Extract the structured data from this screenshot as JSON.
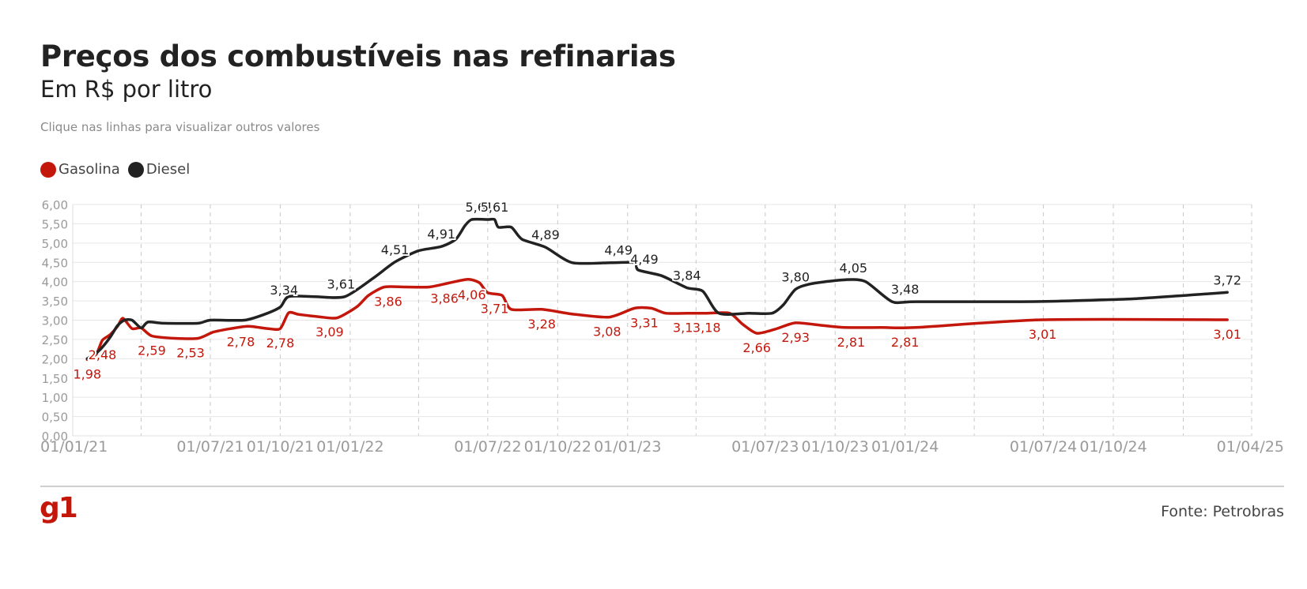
{
  "title": "Preços dos combustíveis nas refinarias",
  "subtitle": "Em R$ por litro",
  "hint": "Clique nas linhas para visualizar outros valores",
  "legend": [
    {
      "label": "Gasolina",
      "color": "#c4170c"
    },
    {
      "label": "Diesel",
      "color": "#222222"
    }
  ],
  "source": "Fonte: Petrobras",
  "logo": "g1",
  "chart_data": {
    "type": "line",
    "title": "Preços dos combustíveis nas refinarias",
    "subtitle": "Em R$ por litro",
    "ylim": [
      0,
      6
    ],
    "y_ticks": [
      "6,00",
      "5,50",
      "5,00",
      "4,50",
      "4,00",
      "3,50",
      "3,00",
      "2,50",
      "2,00",
      "1,50",
      "1,00",
      "0,50",
      "0,00"
    ],
    "x_ticks": [
      "01/01/21",
      "01/07/21",
      "01/10/21",
      "01/01/22",
      "01/07/22",
      "01/10/22",
      "01/01/23",
      "01/07/23",
      "01/10/23",
      "01/01/24",
      "01/07/24",
      "01/10/24",
      "01/04/25"
    ],
    "x_tick_dates": [
      "2021-01-01",
      "2021-07-01",
      "2021-10-01",
      "2022-01-01",
      "2022-07-01",
      "2022-10-01",
      "2023-01-01",
      "2023-07-01",
      "2023-10-01",
      "2024-01-01",
      "2024-07-01",
      "2024-10-01",
      "2025-04-01"
    ],
    "grid": true,
    "legend_position": "top-left",
    "series": [
      {
        "name": "Gasolina",
        "color": "#c4170c",
        "points": [
          [
            "2021-01-20",
            1.98
          ],
          [
            "2021-02-01",
            2.12
          ],
          [
            "2021-02-09",
            2.48
          ],
          [
            "2021-02-19",
            2.62
          ],
          [
            "2021-03-01",
            2.84
          ],
          [
            "2021-03-08",
            3.05
          ],
          [
            "2021-03-20",
            2.78
          ],
          [
            "2021-04-01",
            2.8
          ],
          [
            "2021-04-15",
            2.59
          ],
          [
            "2021-05-15",
            2.53
          ],
          [
            "2021-06-15",
            2.53
          ],
          [
            "2021-07-05",
            2.69
          ],
          [
            "2021-07-28",
            2.78
          ],
          [
            "2021-08-20",
            2.84
          ],
          [
            "2021-09-15",
            2.78
          ],
          [
            "2021-10-01",
            2.78
          ],
          [
            "2021-10-12",
            3.19
          ],
          [
            "2021-10-25",
            3.15
          ],
          [
            "2021-11-20",
            3.09
          ],
          [
            "2021-12-15",
            3.06
          ],
          [
            "2022-01-10",
            3.35
          ],
          [
            "2022-01-25",
            3.64
          ],
          [
            "2022-02-15",
            3.86
          ],
          [
            "2022-03-15",
            3.86
          ],
          [
            "2022-04-15",
            3.86
          ],
          [
            "2022-05-10",
            3.96
          ],
          [
            "2022-06-05",
            4.06
          ],
          [
            "2022-06-20",
            3.97
          ],
          [
            "2022-07-01",
            3.71
          ],
          [
            "2022-07-20",
            3.64
          ],
          [
            "2022-08-01",
            3.28
          ],
          [
            "2022-09-10",
            3.28
          ],
          [
            "2022-10-20",
            3.16
          ],
          [
            "2022-12-08",
            3.08
          ],
          [
            "2023-01-10",
            3.31
          ],
          [
            "2023-02-01",
            3.31
          ],
          [
            "2023-02-20",
            3.18
          ],
          [
            "2023-03-20",
            3.18
          ],
          [
            "2023-04-15",
            3.18
          ],
          [
            "2023-05-15",
            3.18
          ],
          [
            "2023-06-01",
            2.9
          ],
          [
            "2023-06-20",
            2.66
          ],
          [
            "2023-07-15",
            2.77
          ],
          [
            "2023-08-10",
            2.93
          ],
          [
            "2023-09-15",
            2.86
          ],
          [
            "2023-10-15",
            2.81
          ],
          [
            "2023-12-01",
            2.81
          ],
          [
            "2024-01-15",
            2.81
          ],
          [
            "2024-06-30",
            3.01
          ],
          [
            "2025-02-28",
            3.01
          ]
        ],
        "labels": [
          {
            "date": "2021-01-20",
            "text": "1,98"
          },
          {
            "date": "2021-02-09",
            "text": "2,48"
          },
          {
            "date": "2021-04-15",
            "text": "2,59"
          },
          {
            "date": "2021-06-05",
            "text": "2,53"
          },
          {
            "date": "2021-08-10",
            "text": "2,78"
          },
          {
            "date": "2021-10-01",
            "text": "2,78"
          },
          {
            "date": "2021-12-05",
            "text": "3,09"
          },
          {
            "date": "2022-02-20",
            "text": "3,86"
          },
          {
            "date": "2022-05-05",
            "text": "3,86"
          },
          {
            "date": "2022-06-10",
            "text": "4,06"
          },
          {
            "date": "2022-07-10",
            "text": "3,71"
          },
          {
            "date": "2022-09-10",
            "text": "3,28"
          },
          {
            "date": "2022-12-05",
            "text": "3,08"
          },
          {
            "date": "2023-01-23",
            "text": "3,31"
          },
          {
            "date": "2023-03-20",
            "text": "3,18"
          },
          {
            "date": "2023-04-15",
            "text": "3,18"
          },
          {
            "date": "2023-06-20",
            "text": "2,66"
          },
          {
            "date": "2023-08-10",
            "text": "2,93"
          },
          {
            "date": "2023-10-22",
            "text": "2,81"
          },
          {
            "date": "2024-01-01",
            "text": "2,81"
          },
          {
            "date": "2024-06-30",
            "text": "3,01"
          },
          {
            "date": "2025-02-28",
            "text": "3,01"
          }
        ]
      },
      {
        "name": "Diesel",
        "color": "#222222",
        "points": [
          [
            "2021-01-20",
            2.0
          ],
          [
            "2021-02-01",
            2.15
          ],
          [
            "2021-02-09",
            2.3
          ],
          [
            "2021-02-20",
            2.58
          ],
          [
            "2021-03-01",
            2.86
          ],
          [
            "2021-03-10",
            3.0
          ],
          [
            "2021-03-20",
            3.0
          ],
          [
            "2021-04-01",
            2.8
          ],
          [
            "2021-04-10",
            2.95
          ],
          [
            "2021-05-01",
            2.92
          ],
          [
            "2021-06-15",
            2.92
          ],
          [
            "2021-07-01",
            3.0
          ],
          [
            "2021-08-15",
            3.0
          ],
          [
            "2021-09-10",
            3.15
          ],
          [
            "2021-10-01",
            3.34
          ],
          [
            "2021-10-12",
            3.61
          ],
          [
            "2021-11-15",
            3.61
          ],
          [
            "2021-12-25",
            3.61
          ],
          [
            "2022-02-01",
            4.1
          ],
          [
            "2022-03-01",
            4.51
          ],
          [
            "2022-04-01",
            4.8
          ],
          [
            "2022-05-01",
            4.91
          ],
          [
            "2022-05-20",
            5.1
          ],
          [
            "2022-06-01",
            5.45
          ],
          [
            "2022-06-10",
            5.61
          ],
          [
            "2022-07-01",
            5.61
          ],
          [
            "2022-07-10",
            5.61
          ],
          [
            "2022-07-15",
            5.41
          ],
          [
            "2022-08-01",
            5.41
          ],
          [
            "2022-08-15",
            5.1
          ],
          [
            "2022-09-15",
            4.89
          ],
          [
            "2022-10-20",
            4.49
          ],
          [
            "2022-12-10",
            4.49
          ],
          [
            "2023-01-10",
            4.49
          ],
          [
            "2023-01-15",
            4.3
          ],
          [
            "2023-02-15",
            4.15
          ],
          [
            "2023-03-20",
            3.84
          ],
          [
            "2023-04-10",
            3.75
          ],
          [
            "2023-05-01",
            3.18
          ],
          [
            "2023-06-10",
            3.18
          ],
          [
            "2023-07-10",
            3.18
          ],
          [
            "2023-07-25",
            3.4
          ],
          [
            "2023-08-10",
            3.8
          ],
          [
            "2023-09-01",
            3.95
          ],
          [
            "2023-10-15",
            4.05
          ],
          [
            "2023-11-10",
            4.0
          ],
          [
            "2023-12-15",
            3.48
          ],
          [
            "2024-01-15",
            3.48
          ],
          [
            "2024-06-01",
            3.48
          ],
          [
            "2024-08-01",
            3.5
          ],
          [
            "2024-11-01",
            3.56
          ],
          [
            "2025-02-28",
            3.72
          ]
        ],
        "labels": [
          {
            "date": "2021-10-06",
            "text": "3,34"
          },
          {
            "date": "2021-12-20",
            "text": "3,61"
          },
          {
            "date": "2022-03-01",
            "text": "4,51"
          },
          {
            "date": "2022-05-01",
            "text": "4,91"
          },
          {
            "date": "2022-06-20",
            "text": "5,61"
          },
          {
            "date": "2022-07-10",
            "text": "5,61"
          },
          {
            "date": "2022-09-15",
            "text": "4,89"
          },
          {
            "date": "2022-12-20",
            "text": "4,49"
          },
          {
            "date": "2023-01-23",
            "text": "4,49"
          },
          {
            "date": "2023-03-20",
            "text": "3,84"
          },
          {
            "date": "2023-08-10",
            "text": "3,80"
          },
          {
            "date": "2023-10-25",
            "text": "4,05"
          },
          {
            "date": "2024-01-01",
            "text": "3,48"
          },
          {
            "date": "2025-02-28",
            "text": "3,72"
          }
        ]
      }
    ]
  }
}
